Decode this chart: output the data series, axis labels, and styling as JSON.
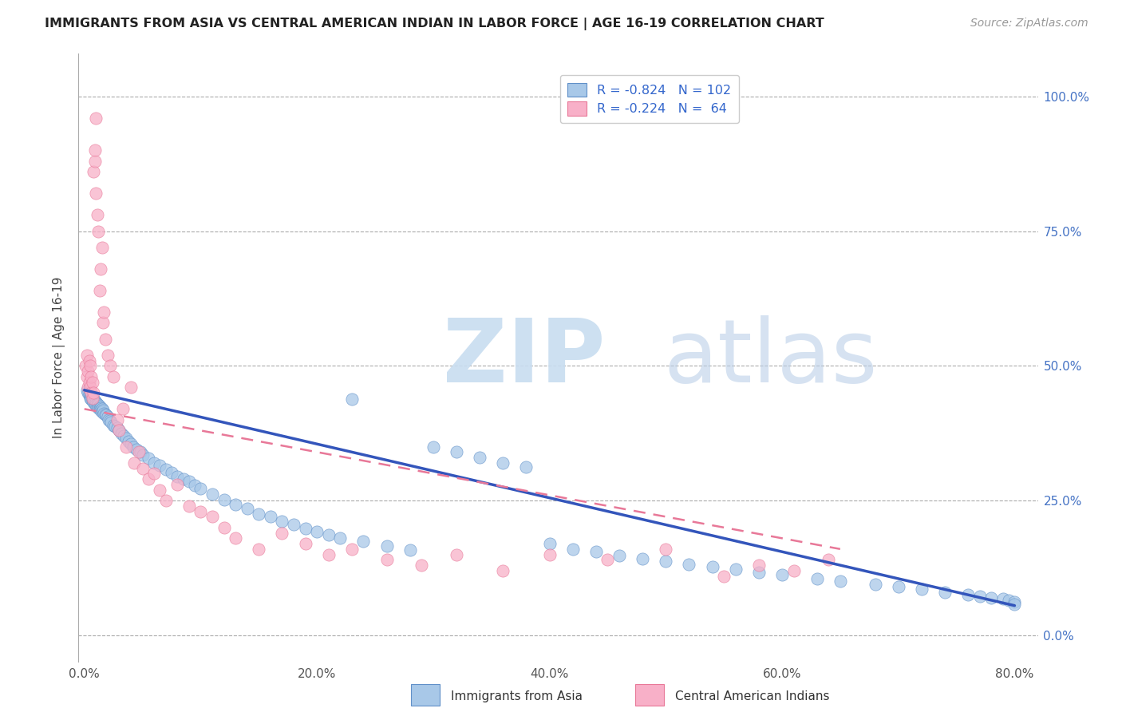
{
  "title": "IMMIGRANTS FROM ASIA VS CENTRAL AMERICAN INDIAN IN LABOR FORCE | AGE 16-19 CORRELATION CHART",
  "source": "Source: ZipAtlas.com",
  "xlabel_ticks": [
    "0.0%",
    "20.0%",
    "40.0%",
    "60.0%",
    "80.0%"
  ],
  "xlabel_tick_vals": [
    0.0,
    0.2,
    0.4,
    0.6,
    0.8
  ],
  "ylabel_ticks": [
    "0.0%",
    "25.0%",
    "50.0%",
    "75.0%",
    "100.0%"
  ],
  "ylabel_tick_vals": [
    0.0,
    0.25,
    0.5,
    0.75,
    1.0
  ],
  "ylabel_label": "In Labor Force | Age 16-19",
  "xlim": [
    -0.005,
    0.82
  ],
  "ylim": [
    -0.05,
    1.08
  ],
  "color_asia": "#a8c8e8",
  "color_asia_edge": "#6090c8",
  "color_asia_line": "#3355bb",
  "color_central": "#f8b0c8",
  "color_central_edge": "#e87898",
  "color_central_line": "#e87898",
  "asia_x": [
    0.002,
    0.003,
    0.004,
    0.004,
    0.005,
    0.005,
    0.006,
    0.006,
    0.007,
    0.007,
    0.008,
    0.008,
    0.009,
    0.009,
    0.01,
    0.01,
    0.011,
    0.011,
    0.012,
    0.012,
    0.013,
    0.013,
    0.014,
    0.014,
    0.015,
    0.015,
    0.016,
    0.017,
    0.018,
    0.019,
    0.02,
    0.021,
    0.022,
    0.023,
    0.025,
    0.026,
    0.028,
    0.03,
    0.032,
    0.034,
    0.036,
    0.038,
    0.04,
    0.042,
    0.045,
    0.048,
    0.05,
    0.055,
    0.06,
    0.065,
    0.07,
    0.075,
    0.08,
    0.085,
    0.09,
    0.095,
    0.1,
    0.11,
    0.12,
    0.13,
    0.14,
    0.15,
    0.16,
    0.17,
    0.18,
    0.19,
    0.2,
    0.21,
    0.22,
    0.23,
    0.24,
    0.26,
    0.28,
    0.3,
    0.32,
    0.34,
    0.36,
    0.38,
    0.4,
    0.42,
    0.44,
    0.46,
    0.48,
    0.5,
    0.52,
    0.54,
    0.56,
    0.58,
    0.6,
    0.63,
    0.65,
    0.68,
    0.7,
    0.72,
    0.74,
    0.76,
    0.77,
    0.78,
    0.79,
    0.795,
    0.8,
    0.8
  ],
  "asia_y": [
    0.455,
    0.45,
    0.448,
    0.445,
    0.443,
    0.44,
    0.442,
    0.438,
    0.44,
    0.435,
    0.438,
    0.432,
    0.435,
    0.43,
    0.433,
    0.428,
    0.43,
    0.425,
    0.428,
    0.422,
    0.425,
    0.42,
    0.422,
    0.418,
    0.42,
    0.415,
    0.418,
    0.412,
    0.41,
    0.408,
    0.405,
    0.4,
    0.398,
    0.395,
    0.39,
    0.388,
    0.385,
    0.38,
    0.375,
    0.37,
    0.365,
    0.36,
    0.355,
    0.35,
    0.345,
    0.34,
    0.335,
    0.328,
    0.32,
    0.315,
    0.308,
    0.302,
    0.295,
    0.29,
    0.285,
    0.278,
    0.272,
    0.262,
    0.252,
    0.242,
    0.235,
    0.225,
    0.22,
    0.212,
    0.205,
    0.198,
    0.192,
    0.186,
    0.18,
    0.438,
    0.175,
    0.165,
    0.158,
    0.35,
    0.34,
    0.33,
    0.32,
    0.312,
    0.17,
    0.16,
    0.155,
    0.148,
    0.142,
    0.137,
    0.132,
    0.127,
    0.122,
    0.117,
    0.112,
    0.105,
    0.1,
    0.095,
    0.09,
    0.085,
    0.08,
    0.075,
    0.072,
    0.07,
    0.068,
    0.065,
    0.062,
    0.058
  ],
  "central_x": [
    0.001,
    0.002,
    0.002,
    0.003,
    0.003,
    0.004,
    0.004,
    0.005,
    0.005,
    0.006,
    0.006,
    0.007,
    0.007,
    0.008,
    0.008,
    0.009,
    0.009,
    0.01,
    0.01,
    0.011,
    0.012,
    0.013,
    0.014,
    0.015,
    0.016,
    0.017,
    0.018,
    0.02,
    0.022,
    0.025,
    0.028,
    0.03,
    0.033,
    0.036,
    0.04,
    0.043,
    0.047,
    0.05,
    0.055,
    0.06,
    0.065,
    0.07,
    0.08,
    0.09,
    0.1,
    0.11,
    0.12,
    0.13,
    0.15,
    0.17,
    0.19,
    0.21,
    0.23,
    0.26,
    0.29,
    0.32,
    0.36,
    0.4,
    0.45,
    0.5,
    0.55,
    0.58,
    0.61,
    0.64
  ],
  "central_y": [
    0.5,
    0.48,
    0.52,
    0.49,
    0.46,
    0.47,
    0.51,
    0.46,
    0.5,
    0.45,
    0.48,
    0.44,
    0.47,
    0.45,
    0.86,
    0.88,
    0.9,
    0.96,
    0.82,
    0.78,
    0.75,
    0.64,
    0.68,
    0.72,
    0.58,
    0.6,
    0.55,
    0.52,
    0.5,
    0.48,
    0.4,
    0.38,
    0.42,
    0.35,
    0.46,
    0.32,
    0.34,
    0.31,
    0.29,
    0.3,
    0.27,
    0.25,
    0.28,
    0.24,
    0.23,
    0.22,
    0.2,
    0.18,
    0.16,
    0.19,
    0.17,
    0.15,
    0.16,
    0.14,
    0.13,
    0.15,
    0.12,
    0.15,
    0.14,
    0.16,
    0.11,
    0.13,
    0.12,
    0.14
  ],
  "asia_line_x0": 0.0,
  "asia_line_x1": 0.8,
  "asia_line_y0": 0.455,
  "asia_line_y1": 0.055,
  "central_line_x0": 0.0,
  "central_line_x1": 0.65,
  "central_line_y0": 0.42,
  "central_line_y1": 0.16
}
